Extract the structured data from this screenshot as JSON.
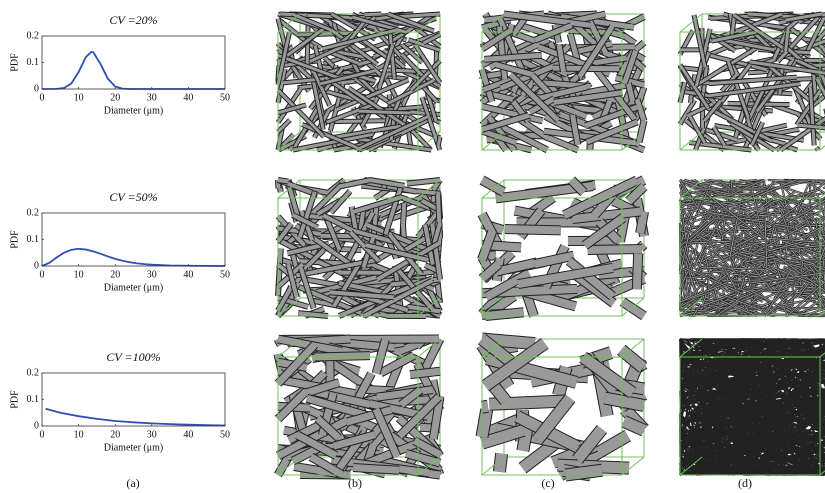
{
  "chart_data": [
    {
      "type": "line",
      "title": "CV =20%",
      "xlabel": "Diameter (μm)",
      "ylabel": "PDF",
      "color": "#2f4fb4",
      "x": [
        0,
        4,
        6,
        8,
        10,
        12,
        13.5,
        14,
        16,
        18,
        20,
        22,
        24,
        30,
        50
      ],
      "values": [
        0,
        0.0004,
        0.0039,
        0.0203,
        0.064,
        0.121,
        0.14,
        0.139,
        0.094,
        0.0385,
        0.0095,
        0.0014,
        0.0001,
        0,
        0
      ],
      "xlim": [
        0,
        50
      ],
      "ylim": [
        0,
        0.2
      ],
      "xticks": [
        0,
        10,
        20,
        30,
        40,
        50
      ],
      "yticks": [
        0,
        0.1,
        0.2
      ]
    },
    {
      "type": "line",
      "title": "CV =50%",
      "xlabel": "Diameter (μm)",
      "ylabel": "PDF",
      "color": "#2f4fb4",
      "x": [
        0,
        2,
        4,
        6,
        8,
        10,
        12,
        14,
        16,
        18,
        20,
        22,
        24,
        26,
        28,
        30,
        35,
        40,
        50
      ],
      "values": [
        0,
        0.012,
        0.032,
        0.05,
        0.061,
        0.065,
        0.062,
        0.055,
        0.046,
        0.036,
        0.027,
        0.02,
        0.014,
        0.01,
        0.007,
        0.005,
        0.002,
        0.001,
        0
      ],
      "xlim": [
        0,
        50
      ],
      "ylim": [
        0,
        0.2
      ],
      "xticks": [
        0,
        10,
        20,
        30,
        40,
        50
      ],
      "yticks": [
        0,
        0.1,
        0.2
      ]
    },
    {
      "type": "line",
      "title": "CV =100%",
      "xlabel": "Diameter (μm)",
      "ylabel": "PDF",
      "color": "#2f4fb4",
      "x": [
        1,
        5,
        10,
        15,
        20,
        25,
        30,
        35,
        40,
        45,
        50
      ],
      "values": [
        0.065,
        0.05,
        0.037,
        0.027,
        0.019,
        0.014,
        0.01,
        0.007,
        0.005,
        0.003,
        0.002
      ],
      "xlim": [
        0,
        50
      ],
      "ylim": [
        0,
        0.2
      ],
      "xticks": [
        0,
        10,
        20,
        30,
        40,
        50
      ],
      "yticks": [
        0,
        0.1,
        0.2
      ]
    }
  ],
  "panel_labels": [
    "(a)",
    "(b)",
    "(c)",
    "(d)"
  ]
}
